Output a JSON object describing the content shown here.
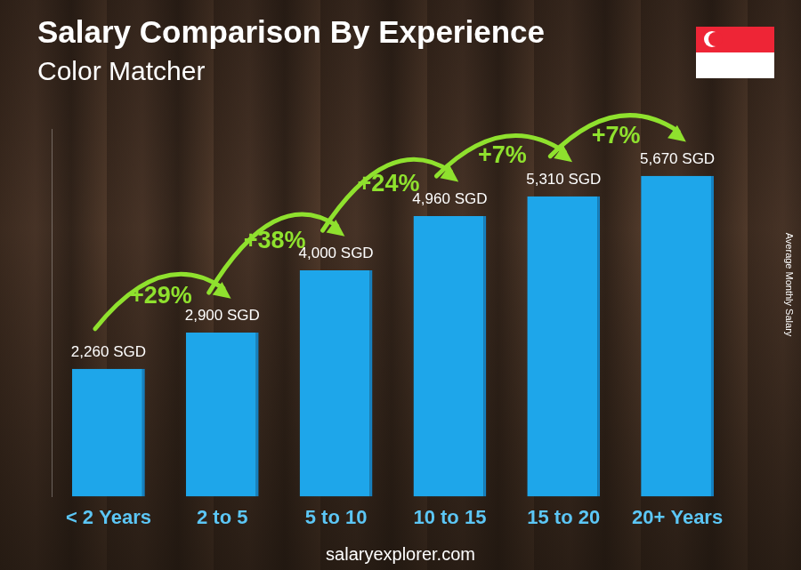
{
  "chart_data": {
    "type": "bar",
    "title": "Salary Comparison By Experience",
    "subtitle": "Color Matcher",
    "ylabel": "Average Monthly Salary",
    "footer": "salaryexplorer.com",
    "categories": [
      "< 2 Years",
      "2 to 5",
      "5 to 10",
      "10 to 15",
      "15 to 20",
      "20+ Years"
    ],
    "values": [
      2260,
      2900,
      4000,
      4960,
      5310,
      5670
    ],
    "value_labels": [
      "2,260 SGD",
      "2,900 SGD",
      "4,000 SGD",
      "4,960 SGD",
      "5,310 SGD",
      "5,670 SGD"
    ],
    "annotations": [
      "+29%",
      "+38%",
      "+24%",
      "+7%",
      "+7%"
    ],
    "color": "#1ea6ea",
    "ylim": [
      0,
      6500
    ],
    "grid": false,
    "data_labels": true,
    "tick_labels": "x"
  }
}
